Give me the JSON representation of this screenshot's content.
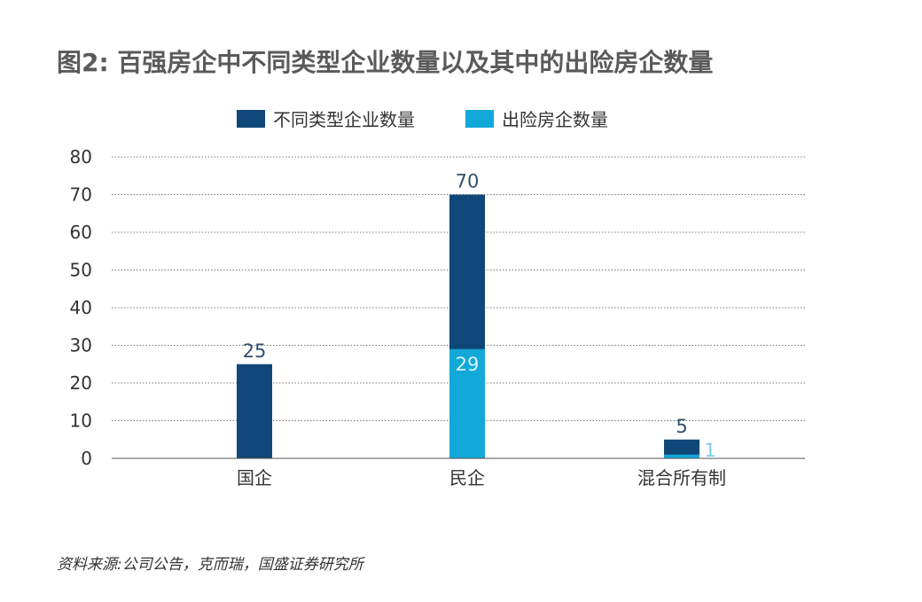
{
  "chart_data": {
    "type": "bar",
    "title": "图2: 百强房企中不同类型企业数量以及其中的出险房企数量",
    "categories": [
      "国企",
      "民企",
      "混合所有制"
    ],
    "series": [
      {
        "name": "不同类型企业数量",
        "values": [
          25,
          70,
          5
        ],
        "color": "#0f4778"
      },
      {
        "name": "出险房企数量",
        "values": [
          null,
          29,
          1
        ],
        "color": "#12a8d8"
      }
    ],
    "data_labels": [
      {
        "series": 0,
        "category": 0,
        "text": "25"
      },
      {
        "series": 0,
        "category": 1,
        "text": "70"
      },
      {
        "series": 1,
        "category": 1,
        "text": "29"
      },
      {
        "series": 0,
        "category": 2,
        "text": "5"
      },
      {
        "series": 1,
        "category": 2,
        "text": "1"
      }
    ],
    "ylim": [
      0,
      80
    ],
    "yticks": [
      0,
      10,
      20,
      30,
      40,
      50,
      60,
      70,
      80
    ],
    "grid": true,
    "legend": "top-center",
    "xlabel": "",
    "ylabel": "",
    "source": "资料来源:公司公告，克而瑞，国盛证券研究所"
  }
}
